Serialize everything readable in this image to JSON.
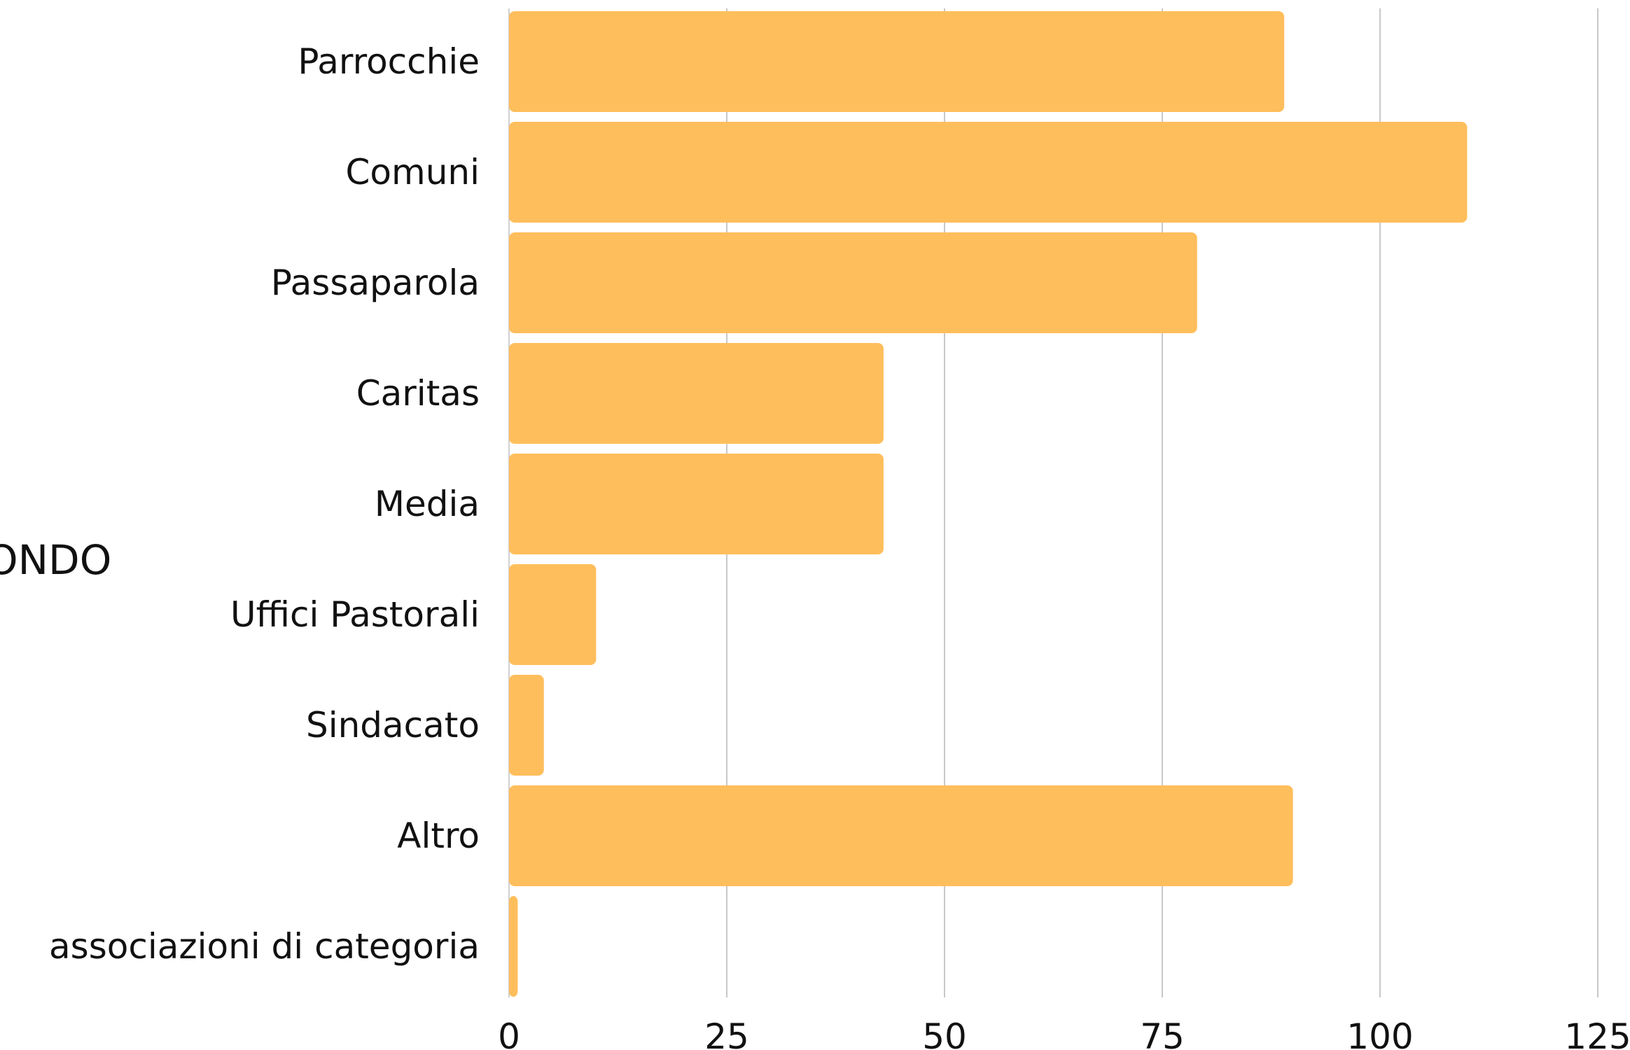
{
  "chart_data": {
    "type": "bar",
    "orientation": "horizontal",
    "ylabel": "ONDO",
    "categories": [
      "Parrocchie",
      "Comuni",
      "Passaparola",
      "Caritas",
      "Media",
      "Uffici Pastorali",
      "Sindacato",
      "Altro",
      "associazioni di categoria"
    ],
    "values": [
      89,
      110,
      79,
      43,
      43,
      10,
      4,
      90,
      1
    ],
    "xlim": [
      0,
      125
    ],
    "xticks": [
      "0",
      "25",
      "50",
      "75",
      "100",
      "125"
    ],
    "grid": true,
    "bar_color": "#FFBE5C"
  }
}
